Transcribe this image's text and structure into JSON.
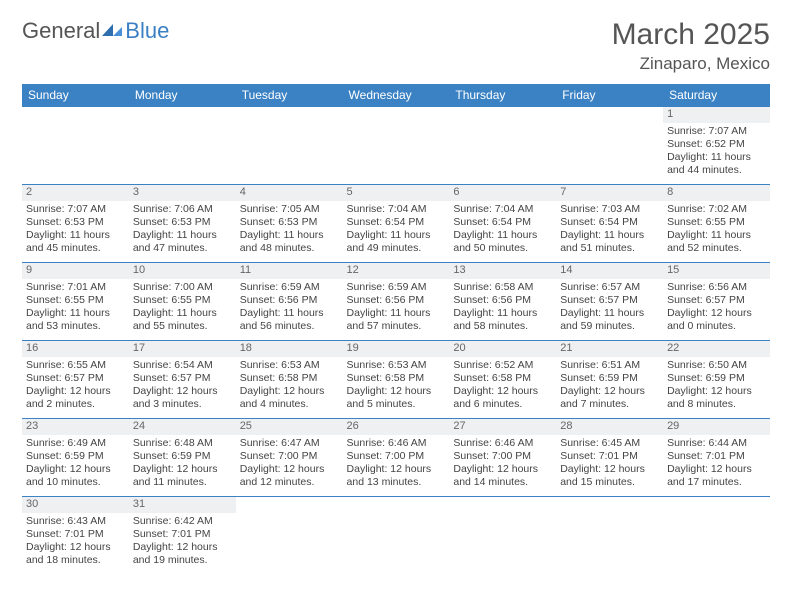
{
  "logo": {
    "general": "General",
    "blue": "Blue"
  },
  "header": {
    "month": "March 2025",
    "location": "Zinaparo, Mexico"
  },
  "colors": {
    "header_bg": "#3b82c4",
    "rule": "#3b82c4",
    "daybar": "#eef0f2"
  },
  "daynames": [
    "Sunday",
    "Monday",
    "Tuesday",
    "Wednesday",
    "Thursday",
    "Friday",
    "Saturday"
  ],
  "weeks": [
    [
      {
        "n": "",
        "sr": "",
        "ss": "",
        "dl": ""
      },
      {
        "n": "",
        "sr": "",
        "ss": "",
        "dl": ""
      },
      {
        "n": "",
        "sr": "",
        "ss": "",
        "dl": ""
      },
      {
        "n": "",
        "sr": "",
        "ss": "",
        "dl": ""
      },
      {
        "n": "",
        "sr": "",
        "ss": "",
        "dl": ""
      },
      {
        "n": "",
        "sr": "",
        "ss": "",
        "dl": ""
      },
      {
        "n": "1",
        "sr": "Sunrise: 7:07 AM",
        "ss": "Sunset: 6:52 PM",
        "dl": "Daylight: 11 hours and 44 minutes."
      }
    ],
    [
      {
        "n": "2",
        "sr": "Sunrise: 7:07 AM",
        "ss": "Sunset: 6:53 PM",
        "dl": "Daylight: 11 hours and 45 minutes."
      },
      {
        "n": "3",
        "sr": "Sunrise: 7:06 AM",
        "ss": "Sunset: 6:53 PM",
        "dl": "Daylight: 11 hours and 47 minutes."
      },
      {
        "n": "4",
        "sr": "Sunrise: 7:05 AM",
        "ss": "Sunset: 6:53 PM",
        "dl": "Daylight: 11 hours and 48 minutes."
      },
      {
        "n": "5",
        "sr": "Sunrise: 7:04 AM",
        "ss": "Sunset: 6:54 PM",
        "dl": "Daylight: 11 hours and 49 minutes."
      },
      {
        "n": "6",
        "sr": "Sunrise: 7:04 AM",
        "ss": "Sunset: 6:54 PM",
        "dl": "Daylight: 11 hours and 50 minutes."
      },
      {
        "n": "7",
        "sr": "Sunrise: 7:03 AM",
        "ss": "Sunset: 6:54 PM",
        "dl": "Daylight: 11 hours and 51 minutes."
      },
      {
        "n": "8",
        "sr": "Sunrise: 7:02 AM",
        "ss": "Sunset: 6:55 PM",
        "dl": "Daylight: 11 hours and 52 minutes."
      }
    ],
    [
      {
        "n": "9",
        "sr": "Sunrise: 7:01 AM",
        "ss": "Sunset: 6:55 PM",
        "dl": "Daylight: 11 hours and 53 minutes."
      },
      {
        "n": "10",
        "sr": "Sunrise: 7:00 AM",
        "ss": "Sunset: 6:55 PM",
        "dl": "Daylight: 11 hours and 55 minutes."
      },
      {
        "n": "11",
        "sr": "Sunrise: 6:59 AM",
        "ss": "Sunset: 6:56 PM",
        "dl": "Daylight: 11 hours and 56 minutes."
      },
      {
        "n": "12",
        "sr": "Sunrise: 6:59 AM",
        "ss": "Sunset: 6:56 PM",
        "dl": "Daylight: 11 hours and 57 minutes."
      },
      {
        "n": "13",
        "sr": "Sunrise: 6:58 AM",
        "ss": "Sunset: 6:56 PM",
        "dl": "Daylight: 11 hours and 58 minutes."
      },
      {
        "n": "14",
        "sr": "Sunrise: 6:57 AM",
        "ss": "Sunset: 6:57 PM",
        "dl": "Daylight: 11 hours and 59 minutes."
      },
      {
        "n": "15",
        "sr": "Sunrise: 6:56 AM",
        "ss": "Sunset: 6:57 PM",
        "dl": "Daylight: 12 hours and 0 minutes."
      }
    ],
    [
      {
        "n": "16",
        "sr": "Sunrise: 6:55 AM",
        "ss": "Sunset: 6:57 PM",
        "dl": "Daylight: 12 hours and 2 minutes."
      },
      {
        "n": "17",
        "sr": "Sunrise: 6:54 AM",
        "ss": "Sunset: 6:57 PM",
        "dl": "Daylight: 12 hours and 3 minutes."
      },
      {
        "n": "18",
        "sr": "Sunrise: 6:53 AM",
        "ss": "Sunset: 6:58 PM",
        "dl": "Daylight: 12 hours and 4 minutes."
      },
      {
        "n": "19",
        "sr": "Sunrise: 6:53 AM",
        "ss": "Sunset: 6:58 PM",
        "dl": "Daylight: 12 hours and 5 minutes."
      },
      {
        "n": "20",
        "sr": "Sunrise: 6:52 AM",
        "ss": "Sunset: 6:58 PM",
        "dl": "Daylight: 12 hours and 6 minutes."
      },
      {
        "n": "21",
        "sr": "Sunrise: 6:51 AM",
        "ss": "Sunset: 6:59 PM",
        "dl": "Daylight: 12 hours and 7 minutes."
      },
      {
        "n": "22",
        "sr": "Sunrise: 6:50 AM",
        "ss": "Sunset: 6:59 PM",
        "dl": "Daylight: 12 hours and 8 minutes."
      }
    ],
    [
      {
        "n": "23",
        "sr": "Sunrise: 6:49 AM",
        "ss": "Sunset: 6:59 PM",
        "dl": "Daylight: 12 hours and 10 minutes."
      },
      {
        "n": "24",
        "sr": "Sunrise: 6:48 AM",
        "ss": "Sunset: 6:59 PM",
        "dl": "Daylight: 12 hours and 11 minutes."
      },
      {
        "n": "25",
        "sr": "Sunrise: 6:47 AM",
        "ss": "Sunset: 7:00 PM",
        "dl": "Daylight: 12 hours and 12 minutes."
      },
      {
        "n": "26",
        "sr": "Sunrise: 6:46 AM",
        "ss": "Sunset: 7:00 PM",
        "dl": "Daylight: 12 hours and 13 minutes."
      },
      {
        "n": "27",
        "sr": "Sunrise: 6:46 AM",
        "ss": "Sunset: 7:00 PM",
        "dl": "Daylight: 12 hours and 14 minutes."
      },
      {
        "n": "28",
        "sr": "Sunrise: 6:45 AM",
        "ss": "Sunset: 7:01 PM",
        "dl": "Daylight: 12 hours and 15 minutes."
      },
      {
        "n": "29",
        "sr": "Sunrise: 6:44 AM",
        "ss": "Sunset: 7:01 PM",
        "dl": "Daylight: 12 hours and 17 minutes."
      }
    ],
    [
      {
        "n": "30",
        "sr": "Sunrise: 6:43 AM",
        "ss": "Sunset: 7:01 PM",
        "dl": "Daylight: 12 hours and 18 minutes."
      },
      {
        "n": "31",
        "sr": "Sunrise: 6:42 AM",
        "ss": "Sunset: 7:01 PM",
        "dl": "Daylight: 12 hours and 19 minutes."
      },
      {
        "n": "",
        "sr": "",
        "ss": "",
        "dl": ""
      },
      {
        "n": "",
        "sr": "",
        "ss": "",
        "dl": ""
      },
      {
        "n": "",
        "sr": "",
        "ss": "",
        "dl": ""
      },
      {
        "n": "",
        "sr": "",
        "ss": "",
        "dl": ""
      },
      {
        "n": "",
        "sr": "",
        "ss": "",
        "dl": ""
      }
    ]
  ]
}
